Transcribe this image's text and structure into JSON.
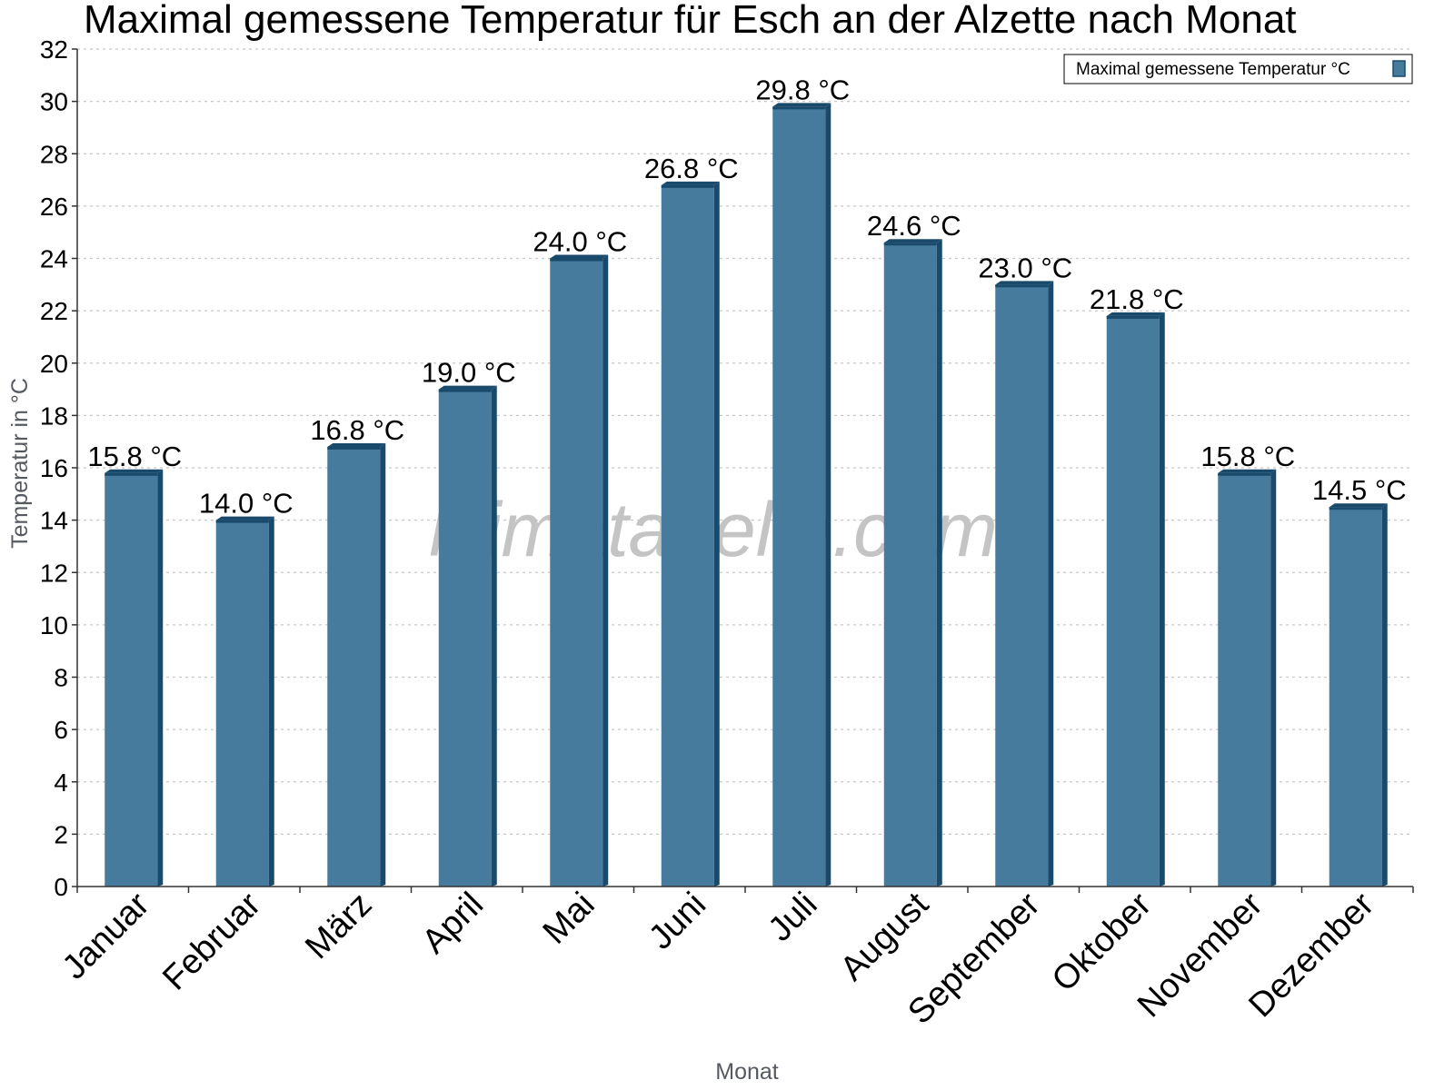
{
  "chart_data": {
    "type": "bar",
    "title": "Maximal gemessene Temperatur für Esch an der Alzette nach Monat",
    "xlabel": "Monat",
    "ylabel": "Temperatur in °C",
    "categories": [
      "Januar",
      "Februar",
      "März",
      "April",
      "Mai",
      "Juni",
      "Juli",
      "August",
      "September",
      "Oktober",
      "November",
      "Dezember"
    ],
    "series": [
      {
        "name": "Maximal gemessene Temperatur °C",
        "values": [
          15.8,
          14.0,
          16.8,
          19.0,
          24.0,
          26.8,
          29.8,
          24.6,
          23.0,
          21.8,
          15.8,
          14.5
        ],
        "labels": [
          "15.8 °C",
          "14.0 °C",
          "16.8 °C",
          "19.0 °C",
          "24.0 °C",
          "26.8 °C",
          "29.8 °C",
          "24.6 °C",
          "23.0 °C",
          "21.8 °C",
          "15.8 °C",
          "14.5 °C"
        ]
      }
    ],
    "ylim": [
      0,
      32
    ],
    "yticks": [
      0,
      2,
      4,
      6,
      8,
      10,
      12,
      14,
      16,
      18,
      20,
      22,
      24,
      26,
      28,
      30,
      32
    ],
    "grid": true,
    "legend": "top-right"
  },
  "watermark": "klimatabelle.com",
  "colors": {
    "bar": "#467b9e",
    "bar_side": "#1a4a6b",
    "bar_top": "#1a4a6b",
    "grid": "#c8c8c8",
    "axis": "#333333"
  }
}
